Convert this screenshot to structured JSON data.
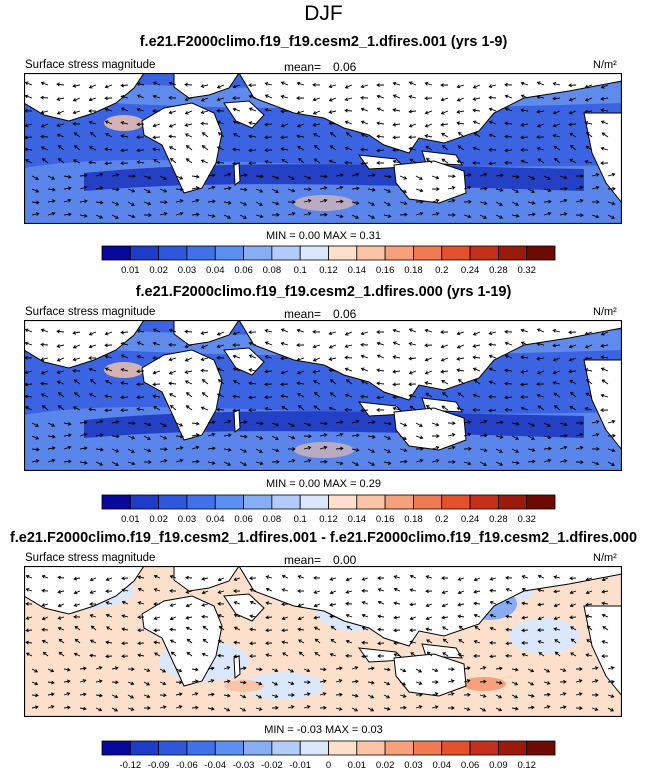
{
  "figure": {
    "title": "DJF"
  },
  "panels": [
    {
      "title": "f.e21.F2000climo.f19_f19.cesm2_1.dfires.001 (yrs 1-9)",
      "left_label": "Surface stress magnitude",
      "mean_label": "mean=",
      "mean_value": "0.06",
      "units": "N/m²",
      "minmax": "MIN =   0.00 MAX =   0.31"
    },
    {
      "title": "f.e21.F2000climo.f19_f19.cesm2_1.dfires.000 (yrs 1-19)",
      "left_label": "Surface stress magnitude",
      "mean_label": "mean=",
      "mean_value": "0.06",
      "units": "N/m²",
      "minmax": "MIN =   0.00 MAX =   0.29"
    },
    {
      "title": "f.e21.F2000climo.f19_f19.cesm2_1.dfires.001 - f.e21.F2000climo.f19_f19.cesm2_1.dfires.000",
      "left_label": "Surface stress magnitude",
      "mean_label": "mean=",
      "mean_value": "0.00",
      "units": "N/m²",
      "minmax": "MIN =  -0.03 MAX =   0.03"
    }
  ],
  "chart_data": [
    {
      "type": "heatmap",
      "title": "f.e21.F2000climo.f19_f19.cesm2_1.dfires.001 (yrs 1-9)",
      "variable": "Surface stress magnitude",
      "units": "N/m²",
      "mean": 0.06,
      "min": 0.0,
      "max": 0.31,
      "colorbar_levels": [
        "0.01",
        "0.02",
        "0.03",
        "0.04",
        "0.06",
        "0.08",
        "0.1",
        "0.12",
        "0.14",
        "0.16",
        "0.18",
        "0.2",
        "0.24",
        "0.28",
        "0.32"
      ],
      "colorbar_colors": [
        "#08089a",
        "#1f3cc8",
        "#2e58dc",
        "#3f72ea",
        "#5b8ff2",
        "#86adf6",
        "#b3cbfa",
        "#dbe8fc",
        "#fde0cc",
        "#fbc4a6",
        "#f7a07c",
        "#f07a52",
        "#e3522c",
        "#c4301a",
        "#9a1a0c",
        "#6e0a04"
      ]
    },
    {
      "type": "heatmap",
      "title": "f.e21.F2000climo.f19_f19.cesm2_1.dfires.000 (yrs 1-19)",
      "variable": "Surface stress magnitude",
      "units": "N/m²",
      "mean": 0.06,
      "min": 0.0,
      "max": 0.29,
      "colorbar_levels": [
        "0.01",
        "0.02",
        "0.03",
        "0.04",
        "0.06",
        "0.08",
        "0.1",
        "0.12",
        "0.14",
        "0.16",
        "0.18",
        "0.2",
        "0.24",
        "0.28",
        "0.32"
      ],
      "colorbar_colors": [
        "#08089a",
        "#1f3cc8",
        "#2e58dc",
        "#3f72ea",
        "#5b8ff2",
        "#86adf6",
        "#b3cbfa",
        "#dbe8fc",
        "#fde0cc",
        "#fbc4a6",
        "#f7a07c",
        "#f07a52",
        "#e3522c",
        "#c4301a",
        "#9a1a0c",
        "#6e0a04"
      ]
    },
    {
      "type": "heatmap",
      "title": "f.e21.F2000climo.f19_f19.cesm2_1.dfires.001 - f.e21.F2000climo.f19_f19.cesm2_1.dfires.000",
      "variable": "Surface stress magnitude",
      "units": "N/m²",
      "mean": 0.0,
      "min": -0.03,
      "max": 0.03,
      "colorbar_levels": [
        "-0.12",
        "-0.09",
        "-0.06",
        "-0.04",
        "-0.03",
        "-0.02",
        "-0.01",
        "0",
        "0.01",
        "0.02",
        "0.03",
        "0.04",
        "0.06",
        "0.09",
        "0.12"
      ],
      "colorbar_colors": [
        "#08089a",
        "#1f3cc8",
        "#2e58dc",
        "#3f72ea",
        "#5b8ff2",
        "#86adf6",
        "#b3cbfa",
        "#dbe8fc",
        "#fde0cc",
        "#fbc4a6",
        "#f7a07c",
        "#f07a52",
        "#e3522c",
        "#c4301a",
        "#9a1a0c",
        "#6e0a04"
      ]
    }
  ]
}
